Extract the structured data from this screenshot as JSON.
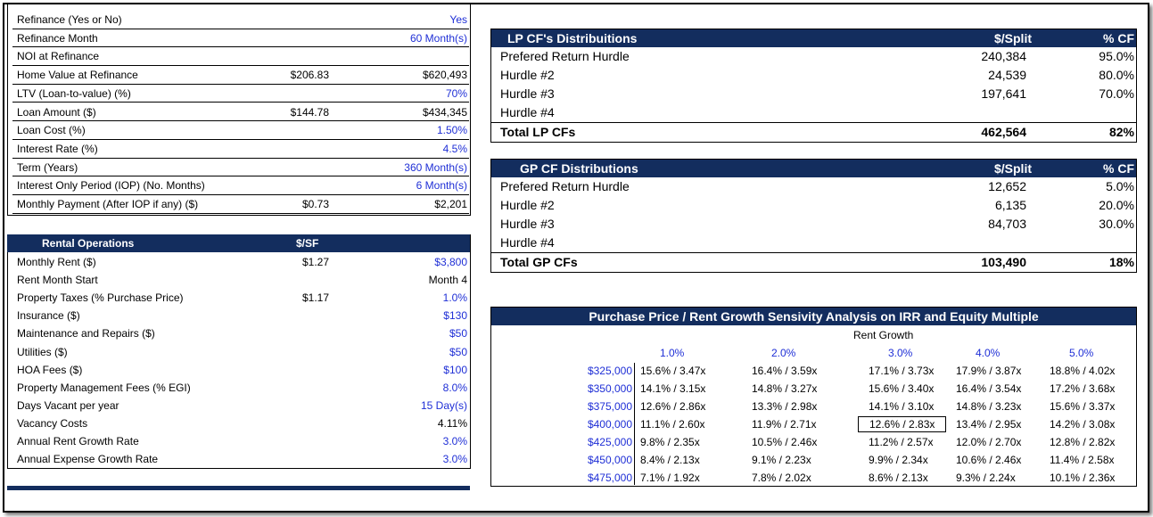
{
  "refinance": {
    "rows": [
      {
        "label": "Refinance (Yes or No)",
        "mid": "",
        "value": "Yes",
        "blue": true
      },
      {
        "label": "Refinance Month",
        "mid": "",
        "value": "60 Month(s)",
        "blue": true
      },
      {
        "label": "NOI at Refinance",
        "mid": "",
        "value": "",
        "blue": false
      },
      {
        "label": "Home Value at Refinance",
        "mid": "$206.83",
        "value": "$620,493",
        "blue": false
      },
      {
        "label": "LTV (Loan-to-value) (%)",
        "mid": "",
        "value": "70%",
        "blue": true
      },
      {
        "label": "Loan Amount ($)",
        "mid": "$144.78",
        "value": "$434,345",
        "blue": false
      },
      {
        "label": "Loan Cost (%)",
        "mid": "",
        "value": "1.50%",
        "blue": true
      },
      {
        "label": "Interest Rate (%)",
        "mid": "",
        "value": "4.5%",
        "blue": true
      },
      {
        "label": "Term (Years)",
        "mid": "",
        "value": "360 Month(s)",
        "blue": true
      },
      {
        "label": "Interest Only Period (IOP) (No. Months)",
        "mid": "",
        "value": "6 Month(s)",
        "blue": true
      },
      {
        "label": "Monthly Payment (After IOP if any) ($)",
        "mid": "$0.73",
        "value": "$2,201",
        "blue": false
      }
    ]
  },
  "rental": {
    "title": "Rental Operations",
    "col": "$/SF",
    "rows": [
      {
        "label": "Monthly Rent ($)",
        "mid": "$1.27",
        "value": "$3,800",
        "blue": true
      },
      {
        "label": "Rent Month Start",
        "mid": "",
        "value": "Month 4",
        "blue": false
      },
      {
        "label": "Property Taxes (% Purchase Price)",
        "mid": "$1.17",
        "value": "1.0%",
        "blue": true
      },
      {
        "label": "Insurance ($)",
        "mid": "",
        "value": "$130",
        "blue": true
      },
      {
        "label": "Maintenance and Repairs ($)",
        "mid": "",
        "value": "$50",
        "blue": true
      },
      {
        "label": "Utilities ($)",
        "mid": "",
        "value": "$50",
        "blue": true
      },
      {
        "label": "HOA Fees ($)",
        "mid": "",
        "value": "$100",
        "blue": true
      },
      {
        "label": "Property Management Fees (% EGI)",
        "mid": "",
        "value": "8.0%",
        "blue": true
      },
      {
        "label": "Days Vacant per year",
        "mid": "",
        "value": "15 Day(s)",
        "blue": true
      },
      {
        "label": "Vacancy Costs",
        "mid": "",
        "value": "4.11%",
        "blue": false
      },
      {
        "label": "Annual Rent Growth Rate",
        "mid": "",
        "value": "3.0%",
        "blue": true
      },
      {
        "label": "Annual Expense Growth Rate",
        "mid": "",
        "value": "3.0%",
        "blue": true
      }
    ]
  },
  "lp": {
    "title": "LP CF's Distribuitions",
    "col_amt": "$/Split",
    "col_pct": "% CF",
    "rows": [
      {
        "label": "Prefered  Return Hurdle",
        "amt": "240,384",
        "pct": "95.0%"
      },
      {
        "label": "Hurdle #2",
        "amt": "24,539",
        "pct": "80.0%"
      },
      {
        "label": "Hurdle #3",
        "amt": "197,641",
        "pct": "70.0%"
      },
      {
        "label": "Hurdle #4",
        "amt": "",
        "pct": ""
      }
    ],
    "total": {
      "label": "Total LP CFs",
      "amt": "462,564",
      "pct": "82%"
    }
  },
  "gp": {
    "title": "GP CF Distributions",
    "col_amt": "$/Split",
    "col_pct": "% CF",
    "rows": [
      {
        "label": "Prefered  Return Hurdle",
        "amt": "12,652",
        "pct": "5.0%"
      },
      {
        "label": "Hurdle #2",
        "amt": "6,135",
        "pct": "20.0%"
      },
      {
        "label": "Hurdle #3",
        "amt": "84,703",
        "pct": "30.0%"
      },
      {
        "label": "Hurdle #4",
        "amt": "",
        "pct": ""
      }
    ],
    "total": {
      "label": "Total GP CFs",
      "amt": "103,490",
      "pct": "18%"
    }
  },
  "sensitivity": {
    "title": "Purchase Price / Rent Growth Sensivity Analysis on IRR and Equity Multiple",
    "axis_label": "Rent Growth",
    "cols": [
      "1.0%",
      "2.0%",
      "3.0%",
      "4.0%",
      "5.0%"
    ],
    "rows": [
      {
        "price": "$325,000",
        "cells": [
          "15.6% / 3.47x",
          "16.4% / 3.59x",
          "17.1% / 3.73x",
          "17.9% / 3.87x",
          "18.8% / 4.02x"
        ]
      },
      {
        "price": "$350,000",
        "cells": [
          "14.1% / 3.15x",
          "14.8% / 3.27x",
          "15.6% / 3.40x",
          "16.4% / 3.54x",
          "17.2% / 3.68x"
        ]
      },
      {
        "price": "$375,000",
        "cells": [
          "12.6% / 2.86x",
          "13.3% / 2.98x",
          "14.1% / 3.10x",
          "14.8% / 3.23x",
          "15.6% / 3.37x"
        ]
      },
      {
        "price": "$400,000",
        "cells": [
          "11.1% / 2.60x",
          "11.9% / 2.71x",
          "12.6% / 2.83x",
          "13.4% / 2.95x",
          "14.2% / 3.08x"
        ]
      },
      {
        "price": "$425,000",
        "cells": [
          "9.8% / 2.35x",
          "10.5% / 2.46x",
          "11.2% / 2.57x",
          "12.0% / 2.70x",
          "12.8% / 2.82x"
        ]
      },
      {
        "price": "$450,000",
        "cells": [
          "8.4% / 2.13x",
          "9.1% / 2.23x",
          "9.9% / 2.34x",
          "10.6% / 2.46x",
          "11.4% / 2.58x"
        ]
      },
      {
        "price": "$475,000",
        "cells": [
          "7.1% / 1.92x",
          "7.8% / 2.02x",
          "8.6% / 2.13x",
          "9.3% / 2.24x",
          "10.1% / 2.36x"
        ]
      }
    ],
    "highlight": "12.6% / 2.83x"
  },
  "colors": {
    "navy": "#132d5e",
    "input_blue": "#1f2fd6"
  }
}
